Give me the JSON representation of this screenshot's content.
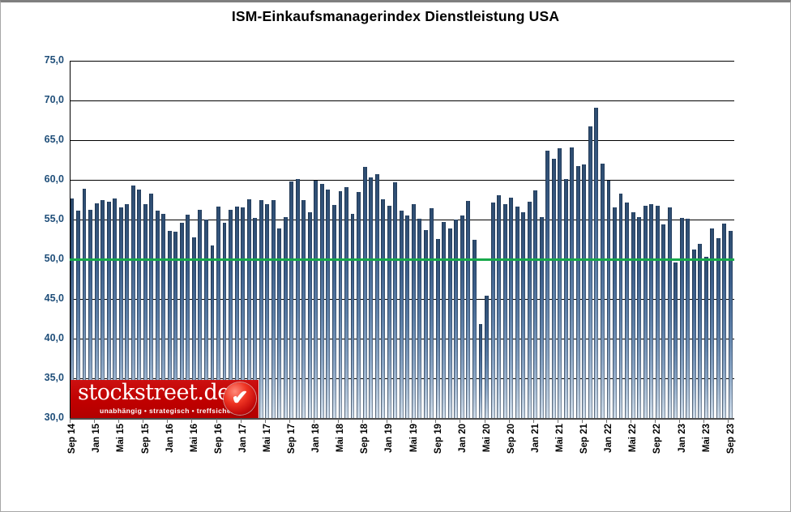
{
  "title": "ISM-Einkaufsmanagerindex Dienstleistung USA",
  "chart_data": {
    "type": "bar",
    "title": "ISM-Einkaufsmanagerindex Dienstleistung USA",
    "xlabel": "",
    "ylabel": "",
    "ylim": [
      30.0,
      75.0
    ],
    "y_tick_step": 5.0,
    "y_tick_labels": [
      "75,0",
      "70,0",
      "65,0",
      "60,0",
      "55,0",
      "50,0",
      "45,0",
      "40,0",
      "35,0",
      "30,0"
    ],
    "grid": true,
    "legend": false,
    "reference_line": {
      "value": 50.0,
      "color": "#17A94B"
    },
    "bar_color_top": "#2D4C70",
    "bar_color_bottom": "#CFDCE9",
    "x_tick_every": 4,
    "x_tick_labels": [
      "Sep 14",
      "Jan 15",
      "Mai 15",
      "Sep 15",
      "Jan 16",
      "Mai 16",
      "Sep 16",
      "Jan 17",
      "Mai 17",
      "Sep 17",
      "Jan 18",
      "Mai 18",
      "Sep 18",
      "Jan 19",
      "Mai 19",
      "Sep 19",
      "Jan 20",
      "Mai 20",
      "Sep 20",
      "Jan 21",
      "Mai 21",
      "Sep 21",
      "Jan 22",
      "Mai 22",
      "Sep 22",
      "Jan 23",
      "Mai 23",
      "Sep 23"
    ],
    "categories": [
      "Sep 14",
      "Okt 14",
      "Nov 14",
      "Dez 14",
      "Jan 15",
      "Feb 15",
      "Mär 15",
      "Apr 15",
      "Mai 15",
      "Jun 15",
      "Jul 15",
      "Aug 15",
      "Sep 15",
      "Okt 15",
      "Nov 15",
      "Dez 15",
      "Jan 16",
      "Feb 16",
      "Mär 16",
      "Apr 16",
      "Mai 16",
      "Jun 16",
      "Jul 16",
      "Aug 16",
      "Sep 16",
      "Okt 16",
      "Nov 16",
      "Dez 16",
      "Jan 17",
      "Feb 17",
      "Mär 17",
      "Apr 17",
      "Mai 17",
      "Jun 17",
      "Jul 17",
      "Aug 17",
      "Sep 17",
      "Okt 17",
      "Nov 17",
      "Dez 17",
      "Jan 18",
      "Feb 18",
      "Mär 18",
      "Apr 18",
      "Mai 18",
      "Jun 18",
      "Jul 18",
      "Aug 18",
      "Sep 18",
      "Okt 18",
      "Nov 18",
      "Dez 18",
      "Jan 19",
      "Feb 19",
      "Mär 19",
      "Apr 19",
      "Mai 19",
      "Jun 19",
      "Jul 19",
      "Aug 19",
      "Sep 19",
      "Okt 19",
      "Nov 19",
      "Dez 19",
      "Jan 20",
      "Feb 20",
      "Mär 20",
      "Apr 20",
      "Mai 20",
      "Jun 20",
      "Jul 20",
      "Aug 20",
      "Sep 20",
      "Okt 20",
      "Nov 20",
      "Dez 20",
      "Jan 21",
      "Feb 21",
      "Mär 21",
      "Apr 21",
      "Mai 21",
      "Jun 21",
      "Jul 21",
      "Aug 21",
      "Sep 21",
      "Okt 21",
      "Nov 21",
      "Dez 21",
      "Jan 22",
      "Feb 22",
      "Mär 22",
      "Apr 22",
      "Mai 22",
      "Jun 22",
      "Jul 22",
      "Aug 22",
      "Sep 22",
      "Okt 22",
      "Nov 22",
      "Dez 22",
      "Jan 23",
      "Feb 23",
      "Mär 23",
      "Apr 23",
      "Mai 23",
      "Jun 23",
      "Jul 23",
      "Aug 23",
      "Sep 23"
    ],
    "values": [
      57.7,
      56.1,
      58.9,
      56.2,
      57.0,
      57.5,
      57.2,
      57.7,
      56.5,
      56.9,
      59.3,
      58.8,
      56.9,
      58.3,
      56.1,
      55.7,
      53.6,
      53.5,
      54.6,
      55.6,
      52.8,
      56.2,
      55.0,
      51.7,
      56.6,
      54.6,
      56.2,
      56.6,
      56.5,
      57.6,
      55.2,
      57.5,
      56.9,
      57.4,
      53.9,
      55.3,
      59.8,
      60.1,
      57.4,
      55.9,
      59.9,
      59.5,
      58.8,
      56.8,
      58.6,
      59.1,
      55.7,
      58.5,
      61.6,
      60.3,
      60.7,
      57.6,
      56.7,
      59.7,
      56.1,
      55.5,
      56.9,
      55.1,
      53.7,
      56.4,
      52.6,
      54.7,
      53.9,
      55.0,
      55.5,
      57.3,
      52.5,
      41.8,
      45.4,
      57.1,
      58.1,
      56.9,
      57.8,
      56.6,
      55.9,
      57.2,
      58.7,
      55.3,
      63.7,
      62.7,
      64.0,
      60.1,
      64.1,
      61.7,
      61.9,
      66.7,
      69.1,
      62.0,
      59.9,
      56.5,
      58.3,
      57.1,
      55.9,
      55.3,
      56.7,
      56.9,
      56.7,
      54.4,
      56.5,
      49.6,
      55.2,
      55.1,
      51.2,
      51.9,
      50.3,
      53.9,
      52.7,
      54.5,
      53.6
    ]
  },
  "logo": {
    "text": "stockstreet.de",
    "tagline": "unabhängig • strategisch • treffsicher",
    "background": "#C00000",
    "check_icon": "✔"
  }
}
